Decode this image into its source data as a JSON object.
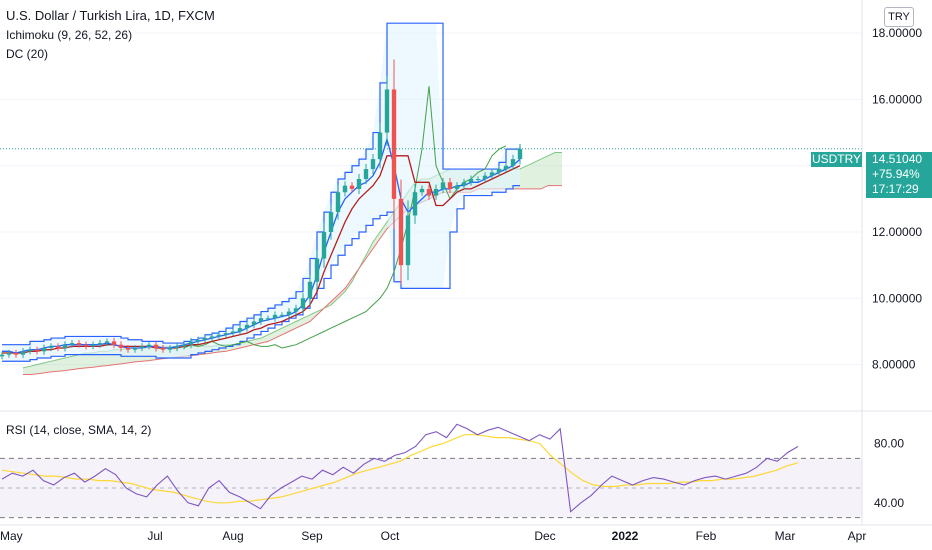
{
  "header": {
    "title": "U.S. Dollar / Turkish Lira, 1D, FXCM",
    "indicator_1": "Ichimoku (9, 26, 52, 26)",
    "indicator_2": "DC (20)",
    "currency_button": "TRY"
  },
  "price_tag": {
    "symbol": "USDTRY",
    "price": "14.51040",
    "change": "+75.94%",
    "countdown": "17:17:29"
  },
  "rsi_panel": {
    "label": "RSI (14, close, SMA, 14, 2)"
  },
  "colors": {
    "up_candle": "#26a69a",
    "down_candle": "#ef5350",
    "ichimoku_conversion": "#2962ff",
    "ichimoku_base": "#b71c1c",
    "ichimoku_lagging": "#43a047",
    "cloud_bull": "#a5d6a7",
    "cloud_bear": "#ef9a9a",
    "donchian": "#2962ff",
    "donchian_fill": "#e1f5fe",
    "rsi_line": "#7e57c2",
    "rsi_sma": "#fdd835"
  },
  "chart_data": [
    {
      "type": "line",
      "panel": "price",
      "yaxis_ticks": [
        8.0,
        10.0,
        12.0,
        14.0,
        16.0,
        18.0
      ],
      "yaxis_labels": [
        "8.00000",
        "10.00000",
        "12.00000",
        "",
        "16.00000",
        "18.00000"
      ],
      "ylim": [
        6.6,
        19.0
      ],
      "xaxis_labels": [
        "May",
        "Jul",
        "Aug",
        "Sep",
        "Oct",
        "Dec",
        "2022",
        "Feb",
        "Mar",
        "Apr"
      ],
      "last_price": 14.5104,
      "series": [
        {
          "key": "close",
          "values": [
            8.3,
            8.35,
            8.3,
            8.4,
            8.45,
            8.4,
            8.5,
            8.55,
            8.5,
            8.6,
            8.65,
            8.6,
            8.55,
            8.6,
            8.65,
            8.7,
            8.6,
            8.5,
            8.45,
            8.5,
            8.55,
            8.6,
            8.5,
            8.45,
            8.5,
            8.55,
            8.6,
            8.7,
            8.75,
            8.8,
            8.85,
            8.9,
            8.95,
            9.0,
            9.1,
            9.2,
            9.3,
            9.4,
            9.4,
            9.5,
            9.5,
            9.6,
            9.7,
            10.0,
            10.5,
            11.2,
            12.0,
            12.6,
            13.2,
            13.4,
            13.3,
            13.6,
            13.9,
            14.2,
            15.0,
            16.3,
            13.0,
            11.0,
            12.5,
            13.2,
            13.3,
            13.1,
            13.3,
            13.5,
            13.3,
            13.4,
            13.5,
            13.6,
            13.6,
            13.7,
            13.8,
            13.9,
            14.0,
            14.2,
            14.5
          ]
        },
        {
          "key": "conversion",
          "values": [
            8.4,
            8.4,
            8.35,
            8.4,
            8.45,
            8.45,
            8.5,
            8.55,
            8.55,
            8.6,
            8.6,
            8.6,
            8.6,
            8.6,
            8.6,
            8.65,
            8.6,
            8.55,
            8.5,
            8.5,
            8.5,
            8.55,
            8.55,
            8.5,
            8.5,
            8.55,
            8.6,
            8.65,
            8.7,
            8.75,
            8.8,
            8.85,
            8.9,
            8.95,
            9.0,
            9.1,
            9.2,
            9.3,
            9.35,
            9.4,
            9.45,
            9.5,
            9.6,
            9.8,
            10.1,
            10.7,
            11.4,
            12.0,
            12.6,
            13.0,
            13.2,
            13.4,
            13.5,
            13.7,
            14.1,
            14.8,
            14.0,
            13.0,
            12.6,
            12.8,
            13.0,
            13.2,
            13.2,
            13.3,
            13.3,
            13.4,
            13.4,
            13.5,
            13.5,
            13.6,
            13.7,
            13.8,
            13.9,
            14.0,
            14.2
          ]
        },
        {
          "key": "base",
          "values": [
            8.35,
            8.35,
            8.35,
            8.35,
            8.4,
            8.4,
            8.45,
            8.45,
            8.5,
            8.5,
            8.55,
            8.55,
            8.55,
            8.55,
            8.55,
            8.6,
            8.6,
            8.55,
            8.55,
            8.55,
            8.55,
            8.55,
            8.5,
            8.5,
            8.5,
            8.5,
            8.55,
            8.6,
            8.6,
            8.65,
            8.7,
            8.75,
            8.8,
            8.85,
            8.9,
            8.95,
            9.05,
            9.1,
            9.2,
            9.25,
            9.3,
            9.4,
            9.5,
            9.6,
            9.8,
            10.2,
            10.8,
            11.3,
            11.8,
            12.3,
            12.7,
            13.0,
            13.2,
            13.4,
            13.7,
            14.3,
            14.3,
            14.3,
            14.3,
            13.5,
            13.5,
            13.5,
            12.8,
            12.8,
            13.0,
            13.2,
            13.3,
            13.3,
            13.4,
            13.5,
            13.6,
            13.7,
            13.8,
            13.9,
            14.0
          ]
        },
        {
          "key": "lagging",
          "values": [
            8.5,
            8.6,
            8.55,
            8.6,
            8.7,
            8.6,
            8.55,
            8.6,
            8.65,
            8.7,
            8.6,
            8.55,
            8.55,
            8.6,
            8.5,
            8.55,
            8.6,
            8.7,
            8.8,
            8.9,
            9.0,
            9.1,
            9.2,
            9.3,
            9.4,
            9.5,
            9.6,
            9.8,
            10.0,
            10.3,
            10.8,
            11.5,
            12.3,
            13.3,
            14.5,
            16.4,
            14.0,
            13.5,
            13.0,
            13.3,
            13.5,
            13.6,
            13.8,
            13.9,
            14.3,
            14.5,
            14.6
          ]
        },
        {
          "key": "donchian_upper",
          "values": [
            8.6,
            8.6,
            8.6,
            8.6,
            8.7,
            8.7,
            8.75,
            8.8,
            8.8,
            8.85,
            8.85,
            8.85,
            8.85,
            8.85,
            8.85,
            8.85,
            8.85,
            8.8,
            8.75,
            8.75,
            8.7,
            8.7,
            8.7,
            8.65,
            8.65,
            8.65,
            8.7,
            8.75,
            8.8,
            8.9,
            8.95,
            9.0,
            9.1,
            9.2,
            9.3,
            9.4,
            9.5,
            9.6,
            9.7,
            9.8,
            9.9,
            10.0,
            10.2,
            10.6,
            11.2,
            12.0,
            12.6,
            13.2,
            13.6,
            13.8,
            14.0,
            14.2,
            14.5,
            15.0,
            16.5,
            18.3,
            18.3,
            18.3,
            18.3,
            18.3,
            18.3,
            18.3,
            18.3,
            13.9,
            13.9,
            13.9,
            13.9,
            13.9,
            13.9,
            13.9,
            13.9,
            14.1,
            14.5,
            14.5,
            14.6
          ]
        },
        {
          "key": "donchian_lower",
          "values": [
            8.1,
            8.1,
            8.1,
            8.1,
            8.15,
            8.2,
            8.2,
            8.25,
            8.25,
            8.3,
            8.3,
            8.3,
            8.3,
            8.3,
            8.3,
            8.3,
            8.3,
            8.25,
            8.25,
            8.25,
            8.25,
            8.25,
            8.2,
            8.2,
            8.2,
            8.2,
            8.2,
            8.3,
            8.35,
            8.4,
            8.45,
            8.5,
            8.55,
            8.6,
            8.7,
            8.8,
            8.9,
            9.0,
            9.1,
            9.2,
            9.3,
            9.4,
            9.5,
            9.7,
            10.0,
            10.3,
            10.6,
            11.0,
            11.3,
            11.6,
            11.8,
            12.0,
            12.2,
            12.4,
            12.5,
            12.6,
            10.5,
            10.3,
            10.3,
            10.3,
            10.3,
            10.3,
            10.3,
            10.3,
            12.0,
            12.7,
            13.1,
            13.1,
            13.1,
            13.1,
            13.2,
            13.2,
            13.3,
            13.4,
            13.4
          ]
        },
        {
          "key": "span_a",
          "values": [
            7.9,
            7.95,
            8.0,
            8.05,
            8.1,
            8.15,
            8.2,
            8.25,
            8.3,
            8.35,
            8.35,
            8.4,
            8.4,
            8.45,
            8.45,
            8.5,
            8.5,
            8.5,
            8.5,
            8.55,
            8.55,
            8.55,
            8.55,
            8.55,
            8.55,
            8.55,
            8.55,
            8.55,
            8.6,
            8.6,
            8.6,
            8.65,
            8.7,
            8.75,
            8.8,
            8.9,
            9.0,
            9.1,
            9.2,
            9.3,
            9.4,
            9.5,
            9.6,
            9.7,
            9.8,
            10.0,
            10.2,
            10.5,
            10.9,
            11.3,
            11.7,
            12.0,
            12.3,
            12.6,
            12.9,
            13.2,
            13.5,
            13.6,
            13.6,
            13.7,
            13.8,
            13.9,
            13.9,
            13.9,
            13.9,
            13.9,
            13.9,
            13.9,
            13.9,
            13.9,
            13.9,
            13.9,
            14.0,
            14.1,
            14.2,
            14.3,
            14.4,
            14.4
          ]
        },
        {
          "key": "span_b",
          "values": [
            7.7,
            7.7,
            7.72,
            7.75,
            7.78,
            7.8,
            7.82,
            7.85,
            7.88,
            7.9,
            7.92,
            7.95,
            7.97,
            8.0,
            8.02,
            8.05,
            8.08,
            8.1,
            8.12,
            8.15,
            8.18,
            8.2,
            8.22,
            8.25,
            8.27,
            8.3,
            8.32,
            8.35,
            8.38,
            8.4,
            8.45,
            8.5,
            8.55,
            8.6,
            8.65,
            8.7,
            8.8,
            8.9,
            9.0,
            9.1,
            9.2,
            9.3,
            9.5,
            9.7,
            9.9,
            10.1,
            10.3,
            10.6,
            10.9,
            11.2,
            11.5,
            11.8,
            12.1,
            12.3,
            12.5,
            12.7,
            12.8,
            12.9,
            13.0,
            13.1,
            13.2,
            13.2,
            13.2,
            13.2,
            13.2,
            13.3,
            13.3,
            13.3,
            13.3,
            13.3,
            13.3,
            13.3,
            13.3,
            13.3,
            13.3,
            13.4,
            13.4,
            13.4
          ]
        }
      ]
    },
    {
      "type": "line",
      "panel": "rsi",
      "ylim": [
        25,
        102
      ],
      "yaxis_ticks": [
        40,
        80
      ],
      "yaxis_labels": [
        "40.00",
        "80.00"
      ],
      "bands": [
        30,
        70
      ],
      "midline": 50,
      "series": [
        {
          "key": "rsi",
          "values": [
            56,
            60,
            58,
            62,
            55,
            52,
            57,
            60,
            54,
            58,
            63,
            59,
            50,
            46,
            44,
            52,
            58,
            48,
            40,
            38,
            50,
            55,
            47,
            44,
            40,
            36,
            45,
            50,
            54,
            58,
            56,
            62,
            59,
            64,
            60,
            66,
            70,
            68,
            72,
            74,
            78,
            86,
            88,
            84,
            93,
            90,
            86,
            89,
            91,
            88,
            85,
            82,
            86,
            83,
            90,
            34,
            40,
            45,
            52,
            58,
            55,
            52,
            55,
            57,
            56,
            54,
            52,
            55,
            57,
            58,
            56,
            58,
            60,
            64,
            70,
            68,
            74,
            78
          ]
        },
        {
          "key": "rsi_sma",
          "values": [
            62,
            61,
            60,
            59,
            58,
            58,
            57,
            56,
            56,
            55,
            55,
            54,
            53,
            51,
            49,
            48,
            47,
            45,
            43,
            41,
            40,
            40,
            41,
            41,
            42,
            43,
            44,
            46,
            48,
            50,
            52,
            54,
            57,
            60,
            62,
            64,
            66,
            68,
            72,
            75,
            78,
            80,
            83,
            86,
            86,
            85,
            84,
            84,
            83,
            82,
            80,
            72,
            66,
            60,
            55,
            52,
            51,
            51,
            52,
            52,
            53,
            53,
            53,
            54,
            54,
            55,
            55,
            56,
            56,
            57,
            58,
            60,
            62,
            65,
            67
          ]
        }
      ]
    }
  ]
}
